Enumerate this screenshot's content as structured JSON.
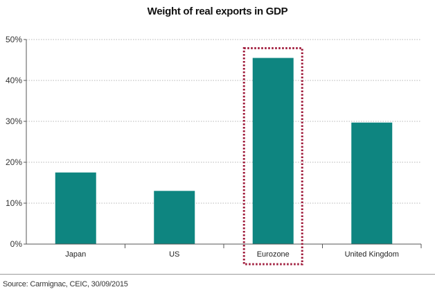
{
  "chart_data": {
    "type": "bar",
    "title": "Weight of real exports in GDP",
    "categories": [
      "Japan",
      "US",
      "Eurozone",
      "United Kingdom"
    ],
    "values": [
      17.5,
      13,
      45.5,
      29.7
    ],
    "ylim": [
      0,
      50
    ],
    "yticks": [
      0,
      10,
      20,
      30,
      40,
      50
    ],
    "ytick_labels": [
      "0%",
      "10%",
      "20%",
      "30%",
      "40%",
      "50%"
    ],
    "xlabel": "",
    "ylabel": "",
    "grid": true,
    "highlight": "Eurozone",
    "bar_color": "#0e8580",
    "highlight_color": "#a01c3c"
  },
  "source": "Source: Carmignac, CEIC, 30/09/2015"
}
